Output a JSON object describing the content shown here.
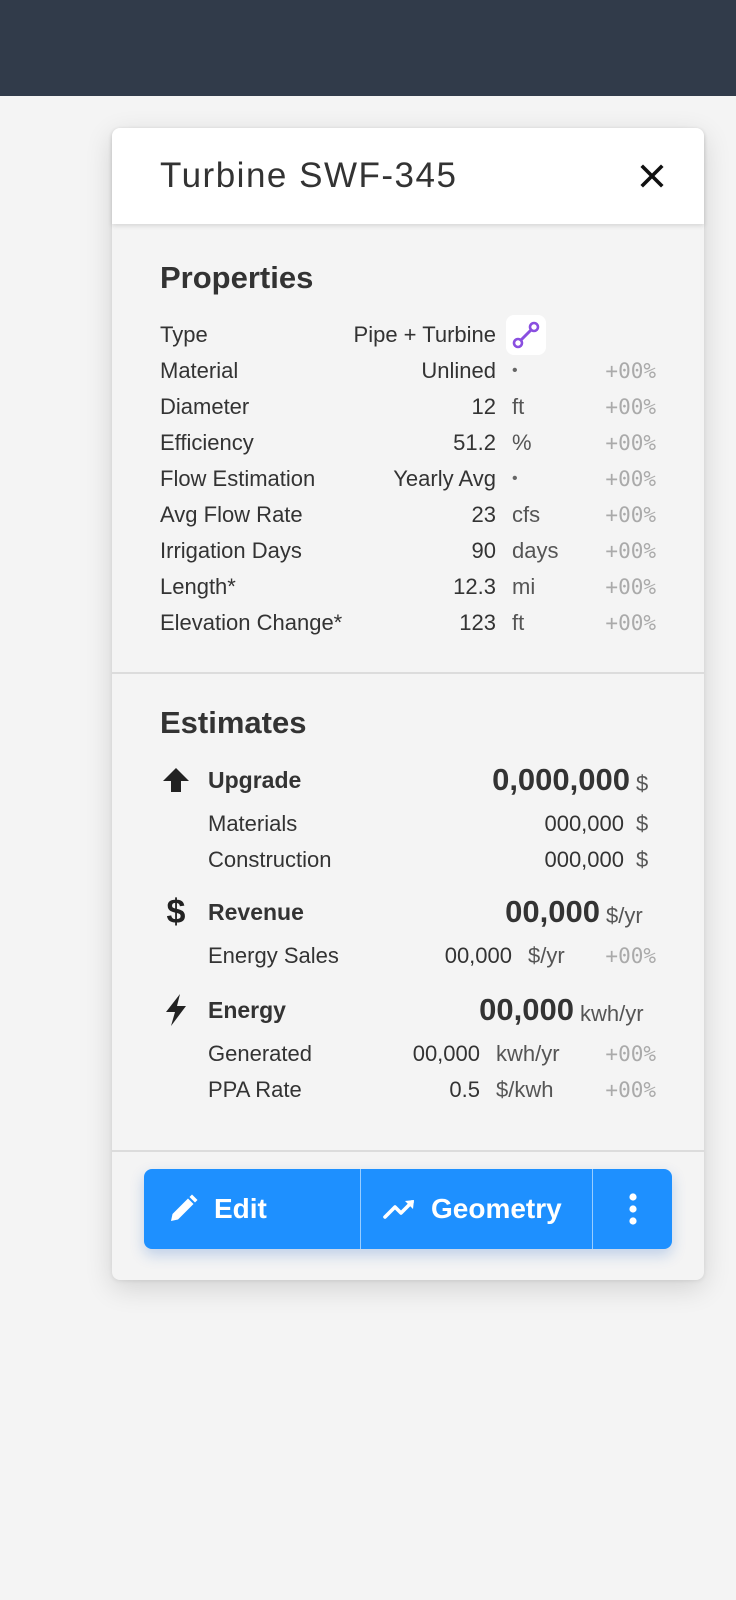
{
  "colors": {
    "topbar": "#313b4a",
    "accent": "#1e90ff",
    "type_icon": "#8a4fe0",
    "delta_text": "#aaaaaa"
  },
  "panel": {
    "title": "Turbine SWF-345",
    "close_icon": "close-icon"
  },
  "properties": {
    "heading": "Properties",
    "type": {
      "label": "Type",
      "value": "Pipe + Turbine",
      "icon": "pipe-segment-icon"
    },
    "rows": [
      {
        "label": "Material",
        "value": "Unlined",
        "unit": "•",
        "delta": "+00%"
      },
      {
        "label": "Diameter",
        "value": "12",
        "unit": "ft",
        "delta": "+00%"
      },
      {
        "label": "Efficiency",
        "value": "51.2",
        "unit": "%",
        "delta": "+00%"
      },
      {
        "label": "Flow Estimation",
        "value": "Yearly Avg",
        "unit": "•",
        "delta": "+00%"
      },
      {
        "label": "Avg Flow Rate",
        "value": "23",
        "unit": "cfs",
        "delta": "+00%"
      },
      {
        "label": "Irrigation Days",
        "value": "90",
        "unit": "days",
        "delta": "+00%"
      },
      {
        "label": "Length*",
        "value": "12.3",
        "unit": "mi",
        "delta": "+00%"
      },
      {
        "label": "Elevation Change*",
        "value": "123",
        "unit": "ft",
        "delta": "+00%"
      }
    ]
  },
  "estimates": {
    "heading": "Estimates",
    "upgrade": {
      "icon": "arrow-up-icon",
      "label": "Upgrade",
      "total": "0,000,000",
      "unit": "$",
      "items": [
        {
          "label": "Materials",
          "value": "000,000",
          "unit": "$"
        },
        {
          "label": "Construction",
          "value": "000,000",
          "unit": "$"
        }
      ]
    },
    "revenue": {
      "icon": "dollar-icon",
      "label": "Revenue",
      "total": "00,000",
      "unit": "$/yr",
      "items": [
        {
          "label": "Energy Sales",
          "value": "00,000",
          "unit": "$/yr",
          "delta": "+00%"
        }
      ]
    },
    "energy": {
      "icon": "lightning-bolt-icon",
      "label": "Energy",
      "total": "00,000",
      "unit": "kwh/yr",
      "items": [
        {
          "label": "Generated",
          "value": "00,000",
          "unit": "kwh/yr",
          "delta": "+00%"
        },
        {
          "label": "PPA Rate",
          "value": "0.5",
          "unit": "$/kwh",
          "delta": "+00%"
        }
      ]
    }
  },
  "actions": {
    "edit": {
      "label": "Edit",
      "icon": "pencil-icon"
    },
    "geometry": {
      "label": "Geometry",
      "icon": "trend-line-icon"
    },
    "more": {
      "icon": "more-vertical-icon"
    }
  }
}
